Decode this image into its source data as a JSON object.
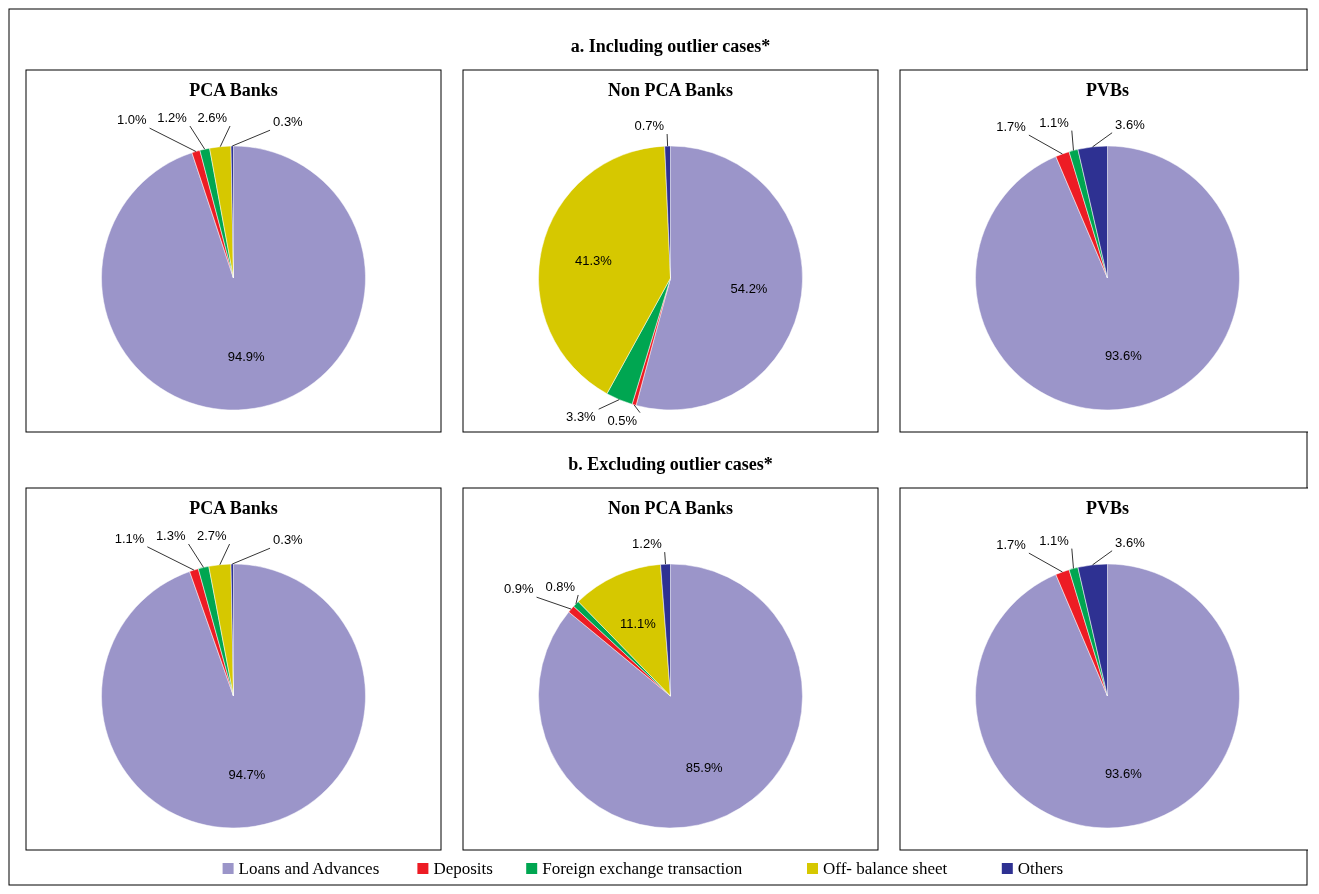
{
  "chart_data": [
    {
      "type": "pie",
      "title": "PCA Banks",
      "categories": [
        "Loans and Advances",
        "Deposits",
        "Foreign exchange transaction",
        "Off- balance sheet",
        "Others"
      ],
      "values": [
        94.9,
        1.0,
        1.2,
        2.6,
        0.3
      ],
      "colors": [
        "#9b95c9",
        "#ed1c24",
        "#00a651",
        "#d6c800",
        "#2e3192"
      ],
      "value_labels": [
        "94.9%",
        "1.0%",
        "1.2%",
        "2.6%",
        "0.3%"
      ],
      "legend": "bottom"
    },
    {
      "type": "pie",
      "subtitle": "a. Including outlier cases*",
      "title": "Non PCA Banks",
      "values": [
        54.2,
        0.5,
        3.3,
        41.3,
        0.7
      ],
      "colors": [
        "#9b95c9",
        "#ed1c24",
        "#00a651",
        "#d6c800",
        "#2e3192"
      ],
      "value_labels": [
        "54.2%",
        "0.5%",
        "3.3%",
        "41.3%",
        "0.7%"
      ]
    },
    {
      "type": "pie",
      "title": "PVBs",
      "values": [
        93.6,
        1.7,
        1.1,
        null,
        3.6
      ],
      "colors": [
        "#9b95c9",
        "#ed1c24",
        "#00a651",
        null,
        "#2e3192"
      ],
      "value_labels": [
        "93.6%",
        "1.7%",
        "1.1%",
        null,
        "3.6%"
      ]
    },
    {
      "type": "pie",
      "title": "PCA Banks",
      "values": [
        94.7,
        1.1,
        1.3,
        2.7,
        0.3
      ],
      "colors": [
        "#9b95c9",
        "#ed1c24",
        "#00a651",
        "#d6c800",
        "#2e3192"
      ],
      "value_labels": [
        "94.7%",
        "1.1%",
        "1.3%",
        "2.7%",
        "0.3%"
      ]
    },
    {
      "type": "pie",
      "subtitle": "b. Excluding outlier cases*",
      "title": "Non PCA Banks",
      "values": [
        85.9,
        0.9,
        0.8,
        11.1,
        1.2
      ],
      "colors": [
        "#9b95c9",
        "#ed1c24",
        "#00a651",
        "#d6c800",
        "#2e3192"
      ],
      "value_labels": [
        "85.9%",
        "0.9%",
        "0.8%",
        "11.1%",
        "1.2%"
      ]
    },
    {
      "type": "pie",
      "title": "PVBs",
      "values": [
        93.6,
        1.7,
        1.1,
        null,
        3.6
      ],
      "colors": [
        "#9b95c9",
        "#ed1c24",
        "#00a651",
        null,
        "#2e3192"
      ],
      "value_labels": [
        "93.6%",
        "1.7%",
        "1.1%",
        null,
        "3.6%"
      ]
    }
  ]
}
